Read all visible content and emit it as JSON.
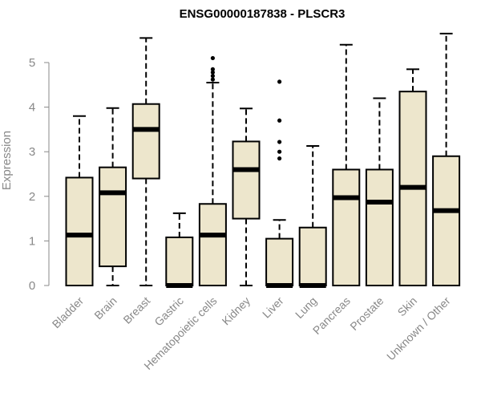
{
  "chart_data": {
    "type": "boxplot",
    "title": "ENSG00000187838 - PLSCR3",
    "xlabel": "",
    "ylabel": "Expression",
    "ylim": [
      0,
      5.8
    ],
    "yticks": [
      0,
      1,
      2,
      3,
      4,
      5
    ],
    "grid": false,
    "box_color": "#ede6cc",
    "categories": [
      "Bladder",
      "Brain",
      "Breast",
      "Gastric",
      "Hematopoietic cells",
      "Kidney",
      "Liver",
      "Lung",
      "Pancreas",
      "Prostate",
      "Skin",
      "Unknown / Other"
    ],
    "boxes": [
      {
        "whisker_low": 0,
        "q1": 0,
        "median": 1.13,
        "q3": 2.42,
        "whisker_high": 3.8,
        "outliers": []
      },
      {
        "whisker_low": 0,
        "q1": 0.43,
        "median": 2.08,
        "q3": 2.65,
        "whisker_high": 3.98,
        "outliers": []
      },
      {
        "whisker_low": 0,
        "q1": 2.4,
        "median": 3.5,
        "q3": 4.07,
        "whisker_high": 5.55,
        "outliers": []
      },
      {
        "whisker_low": 0,
        "q1": 0,
        "median": 0,
        "q3": 1.08,
        "whisker_high": 1.62,
        "outliers": []
      },
      {
        "whisker_low": 0,
        "q1": 0,
        "median": 1.13,
        "q3": 1.83,
        "whisker_high": 4.55,
        "outliers": [
          4.62,
          4.7,
          4.78,
          4.85,
          5.1
        ]
      },
      {
        "whisker_low": 0,
        "q1": 1.5,
        "median": 2.6,
        "q3": 3.23,
        "whisker_high": 3.97,
        "outliers": []
      },
      {
        "whisker_low": 0,
        "q1": 0,
        "median": 0,
        "q3": 1.05,
        "whisker_high": 1.47,
        "outliers": [
          2.85,
          3.0,
          3.22,
          3.7,
          4.57
        ]
      },
      {
        "whisker_low": 0,
        "q1": 0,
        "median": 0,
        "q3": 1.3,
        "whisker_high": 3.13,
        "outliers": []
      },
      {
        "whisker_low": 0,
        "q1": 0,
        "median": 1.97,
        "q3": 2.6,
        "whisker_high": 5.4,
        "outliers": []
      },
      {
        "whisker_low": 0,
        "q1": 0,
        "median": 1.87,
        "q3": 2.6,
        "whisker_high": 4.2,
        "outliers": []
      },
      {
        "whisker_low": 0,
        "q1": 0,
        "median": 2.2,
        "q3": 4.35,
        "whisker_high": 4.85,
        "outliers": []
      },
      {
        "whisker_low": 0,
        "q1": 0,
        "median": 1.68,
        "q3": 2.9,
        "whisker_high": 5.65,
        "outliers": []
      }
    ]
  }
}
